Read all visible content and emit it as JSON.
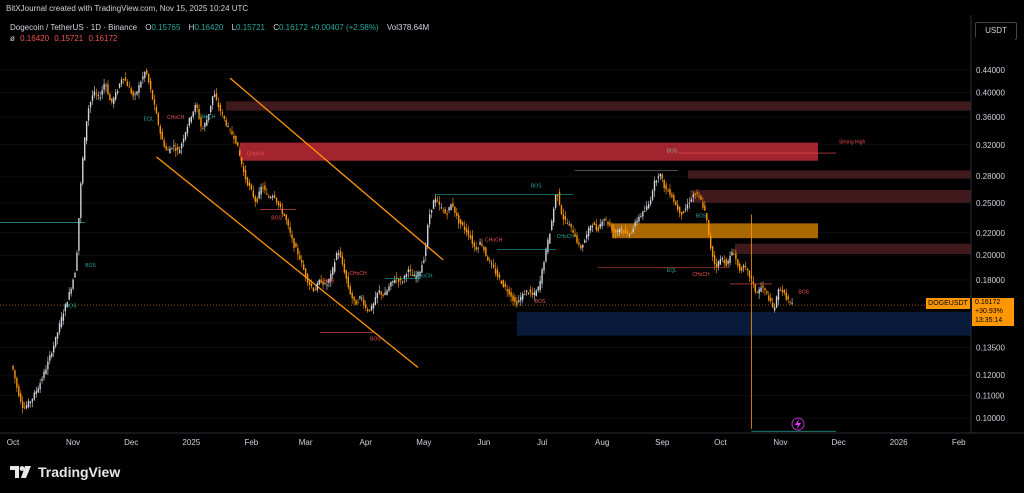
{
  "header": {
    "credit": "BitXJournal created with TradingView.com, Nov 15, 2025 10:24 UTC",
    "symbol": "Dogecoin / TetherUS · 1D · Binance",
    "open_label": "O",
    "open": "0.15765",
    "high_label": "H",
    "high": "0.16420",
    "low_label": "L",
    "low": "0.15721",
    "close_label": "C",
    "close": "0.16172",
    "change": "+0.00407 (+2.58%)",
    "volume_label": "Vol",
    "volume": "378.64M",
    "indicator_symbol": "ø",
    "indicator_values": [
      "0.16420",
      "0.15721",
      "0.16172"
    ],
    "currency": "USDT"
  },
  "price_tag": {
    "symbol": "DOGEUSDT",
    "price": "0.16172",
    "change": "+30.93%",
    "countdown": "13:35:14"
  },
  "footer": {
    "brand": "TradingView"
  },
  "colors": {
    "up": "#d1d4dc",
    "down": "#ff9800",
    "accent": "#ff9800",
    "supply_dark": "#4a1d21",
    "supply_red": "#b22833",
    "demand_orange": "#c77a00",
    "demand_blue": "#0c1f44"
  },
  "chart_data": {
    "type": "candlestick",
    "title": "",
    "xlabel": "",
    "ylabel": "",
    "y_scale": "log",
    "ylim": [
      0.089,
      0.5
    ],
    "y_ticks": [
      "0.44000",
      "0.40000",
      "0.36000",
      "0.32000",
      "0.28000",
      "0.25000",
      "0.22000",
      "0.20000",
      "0.18000",
      "0.15000",
      "0.13500",
      "0.12000",
      "0.11000",
      "0.10000"
    ],
    "y_tick_values": [
      0.44,
      0.4,
      0.36,
      0.32,
      0.28,
      0.25,
      0.22,
      0.2,
      0.18,
      0.15,
      0.135,
      0.12,
      0.11,
      0.1
    ],
    "x_ticks": [
      "Oct",
      "Nov",
      "Dec",
      "2025",
      "Feb",
      "Mar",
      "Apr",
      "May",
      "Jun",
      "Jul",
      "Aug",
      "Sep",
      "Oct",
      "Nov",
      "Dec",
      "2026",
      "Feb"
    ],
    "x_tick_days": [
      0,
      31,
      61,
      92,
      123,
      151,
      182,
      212,
      243,
      273,
      304,
      335,
      365,
      396,
      426,
      457,
      488
    ],
    "last_price": 0.16172,
    "trend_points": [
      [
        0,
        0.125
      ],
      [
        3,
        0.112
      ],
      [
        6,
        0.104
      ],
      [
        10,
        0.108
      ],
      [
        14,
        0.115
      ],
      [
        18,
        0.125
      ],
      [
        22,
        0.138
      ],
      [
        26,
        0.155
      ],
      [
        30,
        0.172
      ],
      [
        33,
        0.19
      ],
      [
        36,
        0.29
      ],
      [
        39,
        0.37
      ],
      [
        42,
        0.4
      ],
      [
        45,
        0.39
      ],
      [
        48,
        0.42
      ],
      [
        51,
        0.38
      ],
      [
        54,
        0.4
      ],
      [
        57,
        0.43
      ],
      [
        60,
        0.41
      ],
      [
        63,
        0.39
      ],
      [
        66,
        0.415
      ],
      [
        69,
        0.44
      ],
      [
        71,
        0.41
      ],
      [
        74,
        0.37
      ],
      [
        77,
        0.33
      ],
      [
        80,
        0.31
      ],
      [
        83,
        0.32
      ],
      [
        86,
        0.31
      ],
      [
        89,
        0.335
      ],
      [
        92,
        0.36
      ],
      [
        95,
        0.38
      ],
      [
        98,
        0.34
      ],
      [
        101,
        0.36
      ],
      [
        104,
        0.4
      ],
      [
        106,
        0.38
      ],
      [
        109,
        0.36
      ],
      [
        112,
        0.34
      ],
      [
        115,
        0.33
      ],
      [
        117,
        0.31
      ],
      [
        120,
        0.28
      ],
      [
        123,
        0.265
      ],
      [
        126,
        0.25
      ],
      [
        129,
        0.27
      ],
      [
        132,
        0.255
      ],
      [
        135,
        0.26
      ],
      [
        138,
        0.245
      ],
      [
        141,
        0.235
      ],
      [
        143,
        0.222
      ],
      [
        145,
        0.21
      ],
      [
        148,
        0.2
      ],
      [
        150,
        0.19
      ],
      [
        153,
        0.178
      ],
      [
        156,
        0.172
      ],
      [
        159,
        0.18
      ],
      [
        162,
        0.175
      ],
      [
        165,
        0.185
      ],
      [
        168,
        0.205
      ],
      [
        171,
        0.19
      ],
      [
        174,
        0.172
      ],
      [
        177,
        0.162
      ],
      [
        180,
        0.168
      ],
      [
        183,
        0.158
      ],
      [
        186,
        0.16
      ],
      [
        189,
        0.172
      ],
      [
        192,
        0.168
      ],
      [
        195,
        0.176
      ],
      [
        198,
        0.182
      ],
      [
        201,
        0.178
      ],
      [
        204,
        0.188
      ],
      [
        207,
        0.182
      ],
      [
        210,
        0.185
      ],
      [
        213,
        0.2
      ],
      [
        215,
        0.235
      ],
      [
        218,
        0.255
      ],
      [
        221,
        0.245
      ],
      [
        224,
        0.238
      ],
      [
        227,
        0.25
      ],
      [
        230,
        0.232
      ],
      [
        233,
        0.225
      ],
      [
        236,
        0.218
      ],
      [
        239,
        0.205
      ],
      [
        242,
        0.212
      ],
      [
        245,
        0.198
      ],
      [
        248,
        0.19
      ],
      [
        251,
        0.182
      ],
      [
        254,
        0.175
      ],
      [
        257,
        0.17
      ],
      [
        260,
        0.162
      ],
      [
        263,
        0.168
      ],
      [
        266,
        0.172
      ],
      [
        269,
        0.168
      ],
      [
        272,
        0.175
      ],
      [
        275,
        0.2
      ],
      [
        278,
        0.225
      ],
      [
        281,
        0.265
      ],
      [
        284,
        0.235
      ],
      [
        287,
        0.228
      ],
      [
        290,
        0.22
      ],
      [
        293,
        0.205
      ],
      [
        296,
        0.215
      ],
      [
        299,
        0.23
      ],
      [
        302,
        0.222
      ],
      [
        305,
        0.235
      ],
      [
        308,
        0.228
      ],
      [
        311,
        0.22
      ],
      [
        314,
        0.225
      ],
      [
        317,
        0.218
      ],
      [
        320,
        0.222
      ],
      [
        323,
        0.235
      ],
      [
        326,
        0.24
      ],
      [
        329,
        0.25
      ],
      [
        331,
        0.27
      ],
      [
        334,
        0.285
      ],
      [
        337,
        0.265
      ],
      [
        340,
        0.26
      ],
      [
        343,
        0.245
      ],
      [
        346,
        0.238
      ],
      [
        349,
        0.25
      ],
      [
        352,
        0.26
      ],
      [
        355,
        0.255
      ],
      [
        358,
        0.238
      ],
      [
        360,
        0.21
      ],
      [
        363,
        0.19
      ],
      [
        366,
        0.198
      ],
      [
        369,
        0.192
      ],
      [
        372,
        0.205
      ],
      [
        375,
        0.188
      ],
      [
        378,
        0.19
      ],
      [
        381,
        0.182
      ],
      [
        384,
        0.17
      ],
      [
        387,
        0.175
      ],
      [
        390,
        0.168
      ],
      [
        393,
        0.158
      ],
      [
        396,
        0.175
      ],
      [
        399,
        0.168
      ],
      [
        402,
        0.162
      ]
    ],
    "zones": [
      {
        "label": "",
        "top": 0.385,
        "bottom": 0.37,
        "kind": "supply-dark"
      },
      {
        "label": "",
        "top": 0.323,
        "bottom": 0.299,
        "kind": "supply-red"
      },
      {
        "label": "",
        "top": 0.287,
        "bottom": 0.277,
        "kind": "supply-dark"
      },
      {
        "label": "",
        "top": 0.264,
        "bottom": 0.25,
        "kind": "supply-dark"
      },
      {
        "label": "",
        "top": 0.229,
        "bottom": 0.215,
        "kind": "demand-orange"
      },
      {
        "label": "",
        "top": 0.21,
        "bottom": 0.201,
        "kind": "supply-dark"
      },
      {
        "label": "",
        "top": 0.157,
        "bottom": 0.142,
        "kind": "demand-blue"
      }
    ],
    "annotations": [
      {
        "text": "BOS",
        "day": 270,
        "price": 0.267,
        "color": "#26a69a"
      },
      {
        "text": "BOS",
        "day": 340,
        "price": 0.31,
        "color": "#9e9e9e"
      },
      {
        "text": "CHoCH",
        "day": 355,
        "price": 0.183,
        "color": "#ef5350"
      },
      {
        "text": "Strong High",
        "day": 433,
        "price": 0.322,
        "color": "#ef5350"
      },
      {
        "text": "EQL",
        "day": 70,
        "price": 0.355,
        "color": "#26a69a"
      },
      {
        "text": "CHoCH",
        "day": 84,
        "price": 0.357,
        "color": "#ef5350"
      },
      {
        "text": "CHoCH",
        "day": 100,
        "price": 0.358,
        "color": "#26a69a"
      },
      {
        "text": "CHoCH",
        "day": 125,
        "price": 0.306,
        "color": "#ef5350"
      },
      {
        "text": "BOS",
        "day": 136,
        "price": 0.233,
        "color": "#ef5350"
      },
      {
        "text": "BOS",
        "day": 163,
        "price": 0.178,
        "color": "#ef5350"
      },
      {
        "text": "CHoCH",
        "day": 178,
        "price": 0.184,
        "color": "#ef5350"
      },
      {
        "text": "BOS",
        "day": 187,
        "price": 0.139,
        "color": "#ef5350"
      },
      {
        "text": "CHoCH",
        "day": 212,
        "price": 0.182,
        "color": "#26a69a"
      },
      {
        "text": "CHoCH",
        "day": 248,
        "price": 0.212,
        "color": "#ef5350"
      },
      {
        "text": "CHoCH",
        "day": 285,
        "price": 0.215,
        "color": "#26a69a"
      },
      {
        "text": "BOS",
        "day": 272,
        "price": 0.163,
        "color": "#ef5350"
      },
      {
        "text": "EQL",
        "day": 340,
        "price": 0.186,
        "color": "#26a69a"
      },
      {
        "text": "BOS",
        "day": 408,
        "price": 0.17,
        "color": "#ef5350"
      },
      {
        "text": "BOS",
        "day": 355,
        "price": 0.235,
        "color": "#26a69a"
      },
      {
        "text": "BOS",
        "day": 40,
        "price": 0.19,
        "color": "#26a69a"
      },
      {
        "text": "BOS",
        "day": 30,
        "price": 0.16,
        "color": "#26a69a"
      }
    ],
    "channel": {
      "upper": [
        [
          112,
          0.425
        ],
        [
          222,
          0.196
        ]
      ],
      "lower": [
        [
          74,
          0.304
        ],
        [
          209,
          0.124
        ]
      ]
    },
    "crash_wick": {
      "day": 381,
      "high": 0.238,
      "low": 0.0955
    }
  }
}
